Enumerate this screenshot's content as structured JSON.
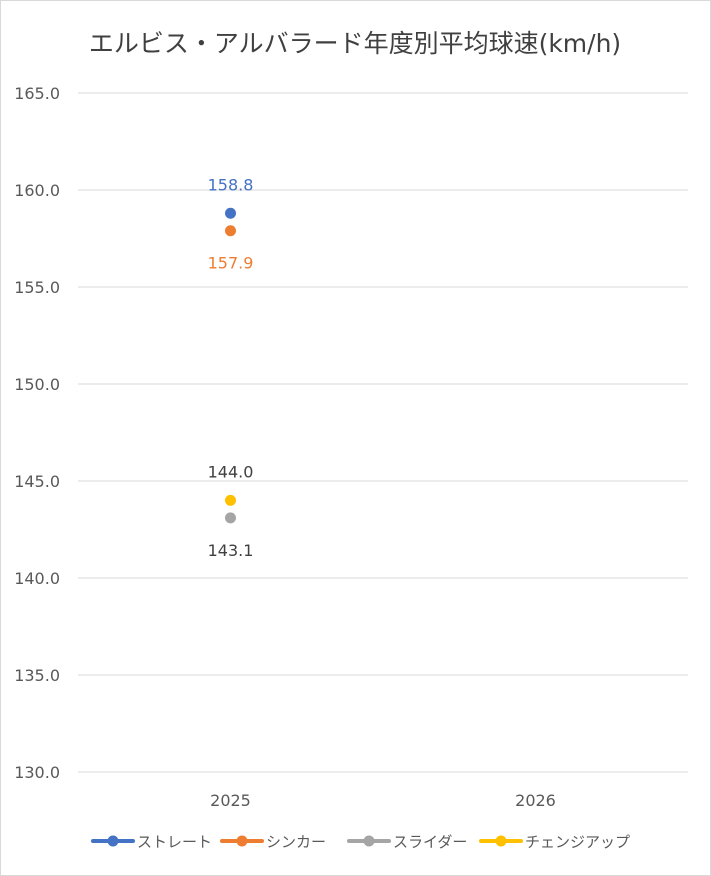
{
  "chart_data": {
    "type": "scatter",
    "title": "エルビス・アルバラード年度別平均球速(km/h)",
    "xlabel": "",
    "ylabel": "",
    "categories": [
      "2025",
      "2026"
    ],
    "ylim": [
      130.0,
      165.0
    ],
    "ytick_step": 5.0,
    "y_tick_labels": [
      "130.0",
      "135.0",
      "140.0",
      "145.0",
      "150.0",
      "155.0",
      "160.0",
      "165.0"
    ],
    "grid": true,
    "legend_position": "bottom",
    "series": [
      {
        "name": "ストレート",
        "color": "#4472C4",
        "values": [
          158.8,
          null
        ],
        "data_labels": [
          "158.8",
          ""
        ],
        "label_position": "above"
      },
      {
        "name": "シンカー",
        "color": "#ED7D31",
        "values": [
          157.9,
          null
        ],
        "data_labels": [
          "157.9",
          ""
        ],
        "label_position": "below"
      },
      {
        "name": "スライダー",
        "color": "#A5A5A5",
        "values": [
          143.1,
          null
        ],
        "data_labels": [
          "143.1",
          ""
        ],
        "label_position": "below"
      },
      {
        "name": "チェンジアップ",
        "color": "#FFC000",
        "values": [
          144.0,
          null
        ],
        "data_labels": [
          "144.0",
          ""
        ],
        "label_position": "above"
      }
    ]
  }
}
